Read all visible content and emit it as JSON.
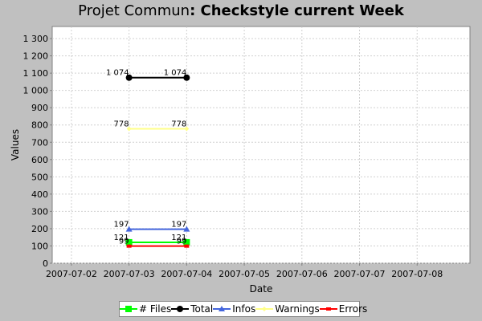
{
  "title": {
    "name": "Projet Commun",
    "rest": ": Checkstyle current Week"
  },
  "colors": {
    "files": "#00ff00",
    "total": "#000000",
    "infos": "#4466dd",
    "warnings": "#ffff88",
    "errors": "#ff0000"
  },
  "chart_data": {
    "type": "line",
    "xlabel": "Date",
    "ylabel": "Values",
    "x_ticks": [
      "2007-07-02",
      "2007-07-03",
      "2007-07-04",
      "2007-07-05",
      "2007-07-06",
      "2007-07-07",
      "2007-07-08"
    ],
    "xlim": [
      "2007-07-01T16:00",
      "2007-07-08T22:00"
    ],
    "ylim": [
      0,
      1370
    ],
    "y_ticks": [
      0,
      100,
      200,
      300,
      400,
      500,
      600,
      700,
      800,
      900,
      1000,
      1100,
      1200,
      1300
    ],
    "y_tick_labels": [
      "0",
      "100",
      "200",
      "300",
      "400",
      "500",
      "600",
      "700",
      "800",
      "900",
      "1 000",
      "1 100",
      "1 200",
      "1 300"
    ],
    "grid": true,
    "legend_position": "bottom",
    "x": [
      "2007-07-03",
      "2007-07-04"
    ],
    "series": [
      {
        "name": "# Files",
        "key": "files",
        "marker": "square",
        "values": [
          121,
          121
        ],
        "labels": [
          "121",
          "121"
        ]
      },
      {
        "name": "Total",
        "key": "total",
        "marker": "circle",
        "values": [
          1074,
          1074
        ],
        "labels": [
          "1 074",
          "1 074"
        ]
      },
      {
        "name": "Infos",
        "key": "infos",
        "marker": "triangle",
        "values": [
          197,
          197
        ],
        "labels": [
          "197",
          "197"
        ]
      },
      {
        "name": "Warnings",
        "key": "warnings",
        "marker": "diamond",
        "values": [
          778,
          778
        ],
        "labels": [
          "778",
          "778"
        ]
      },
      {
        "name": "Errors",
        "key": "errors",
        "marker": "rect",
        "values": [
          99,
          99
        ],
        "labels": [
          "99",
          "99"
        ]
      }
    ]
  }
}
